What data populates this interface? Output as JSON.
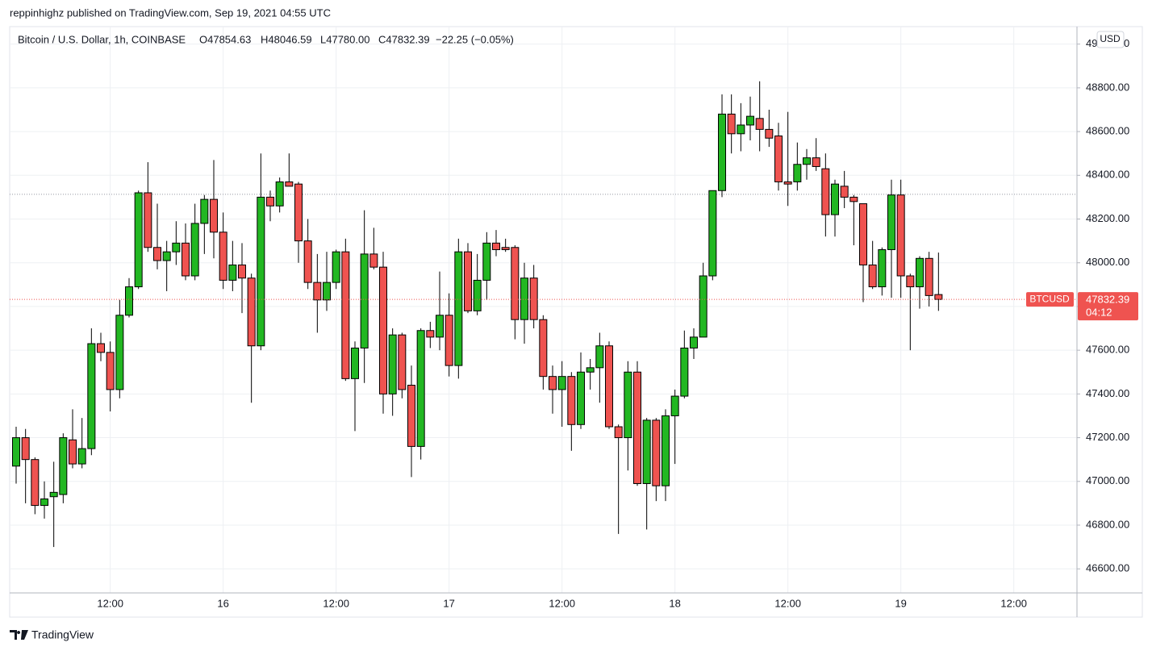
{
  "publisher_line": "reppinhighz published on TradingView.com, Sep 19, 2021 04:55 UTC",
  "logo": "TradingView",
  "chart_data": {
    "type": "candlestick",
    "header": {
      "symbol": "Bitcoin / U.S. Dollar, 1h, COINBASE",
      "open": "O47854.63",
      "high": "H48046.59",
      "low": "L47780.00",
      "close": "C47832.39",
      "change": "−22.25 (−0.05%)"
    },
    "currency": "USD",
    "last_price": {
      "symbol": "BTCUSD",
      "value": 47832.39,
      "countdown": "04:12",
      "color": "#ef5350"
    },
    "reference_level": 48313,
    "up_color": "#22b722",
    "down_color": "#ef5350",
    "categories": [
      null,
      null,
      null,
      null,
      null,
      null,
      null,
      null,
      null,
      null,
      "12:00",
      null,
      null,
      null,
      null,
      null,
      null,
      null,
      null,
      null,
      null,
      null,
      "16",
      null,
      null,
      null,
      null,
      null,
      null,
      null,
      null,
      null,
      null,
      null,
      "12:00",
      null,
      null,
      null,
      null,
      null,
      null,
      null,
      null,
      null,
      null,
      null,
      "17",
      null,
      null,
      null,
      null,
      null,
      null,
      null,
      null,
      null,
      null,
      null,
      "12:00",
      null,
      null,
      null,
      null,
      null,
      null,
      null,
      null,
      null,
      null,
      null,
      "18",
      null,
      null,
      null,
      null,
      null,
      null,
      null,
      null,
      null,
      null,
      null,
      "12:00",
      null,
      null,
      null,
      null,
      null,
      null,
      null,
      null,
      null,
      null,
      null,
      "19",
      null,
      null,
      null,
      null,
      null,
      null,
      null,
      null,
      null,
      null,
      null,
      "12:00"
    ],
    "open": [
      47070,
      47200,
      47100,
      46890,
      46930,
      46940,
      47190,
      47080,
      47150,
      47630,
      47590,
      47420,
      47760,
      47890,
      48320,
      48070,
      48010,
      48050,
      48090,
      47940,
      48180,
      48290,
      48140,
      47920,
      47990,
      47930,
      47620,
      48300,
      48260,
      48370,
      48360,
      48100,
      47910,
      47830,
      47910,
      48050,
      47470,
      47610,
      48040,
      47980,
      47400,
      47670,
      47440,
      47160,
      47690,
      47660,
      47760,
      47530,
      48050,
      47780,
      47920,
      48090,
      48070,
      48070,
      47740,
      47930,
      47740,
      47480,
      47420,
      47480,
      47260,
      47500,
      47520,
      47620,
      47250,
      47200,
      47500,
      46990,
      47280,
      46980,
      47300,
      47390,
      47610,
      47660,
      47940,
      48330,
      48680,
      48590,
      48630,
      48660,
      48610,
      48580,
      48370,
      48370,
      48450,
      48480,
      48430,
      48220,
      48350,
      48300,
      48270,
      47990,
      47890,
      48060,
      48310,
      47940,
      47890,
      48020,
      47854.63,
      null,
      null,
      null,
      null,
      null,
      null,
      null,
      null
    ],
    "high": [
      47250,
      47240,
      47110,
      47000,
      47090,
      47220,
      47330,
      47290,
      47700,
      47680,
      47640,
      47830,
      47930,
      48330,
      48460,
      48270,
      48100,
      48190,
      48180,
      48270,
      48310,
      48470,
      48230,
      48100,
      48090,
      47950,
      48500,
      48330,
      48390,
      48500,
      48370,
      48200,
      48040,
      48050,
      48060,
      48110,
      47640,
      48240,
      48160,
      48050,
      47700,
      47680,
      47530,
      47700,
      47730,
      47960,
      47860,
      48110,
      48090,
      48040,
      48140,
      48150,
      48110,
      48080,
      48000,
      47990,
      47760,
      47530,
      47550,
      47500,
      47590,
      47560,
      47680,
      47640,
      47260,
      47550,
      47550,
      47290,
      47290,
      47330,
      47420,
      47690,
      47700,
      48000,
      48330,
      48770,
      48770,
      48730,
      48760,
      48830,
      48700,
      48640,
      48690,
      48550,
      48520,
      48570,
      48500,
      48380,
      48420,
      48310,
      48270,
      48100,
      48070,
      48380,
      48380,
      47950,
      48030,
      48050,
      48046.59,
      null,
      null,
      null,
      null,
      null,
      null,
      null,
      null
    ],
    "low": [
      46990,
      46900,
      46850,
      46830,
      46700,
      46900,
      47060,
      47060,
      47120,
      47550,
      47320,
      47380,
      47750,
      47880,
      48050,
      47970,
      47870,
      47990,
      47920,
      47920,
      48040,
      48020,
      47880,
      47870,
      47770,
      47360,
      47600,
      48190,
      48230,
      48350,
      48000,
      47880,
      47680,
      47780,
      47880,
      47460,
      47230,
      47450,
      47970,
      47310,
      47300,
      47380,
      47020,
      47100,
      47610,
      47600,
      47480,
      47470,
      47770,
      47760,
      47830,
      48030,
      48050,
      47650,
      47630,
      47700,
      47420,
      47310,
      47250,
      47140,
      47240,
      47420,
      47360,
      47240,
      46760,
      47050,
      46980,
      46780,
      46910,
      46910,
      47080,
      47380,
      47560,
      47660,
      47920,
      48300,
      48500,
      48510,
      48560,
      48510,
      48530,
      48330,
      48260,
      48330,
      48380,
      48420,
      48120,
      48120,
      48250,
      48080,
      47820,
      47880,
      47850,
      47840,
      47840,
      47600,
      47790,
      47800,
      47780,
      null,
      null,
      null,
      null,
      null,
      null,
      null,
      null
    ],
    "close": [
      47200,
      47100,
      46890,
      46920,
      46950,
      47200,
      47080,
      47150,
      47630,
      47590,
      47420,
      47760,
      47890,
      48320,
      48070,
      48010,
      48050,
      48090,
      47940,
      48180,
      48290,
      48140,
      47920,
      47990,
      47930,
      47620,
      48300,
      48260,
      48370,
      48350,
      48100,
      47910,
      47830,
      47910,
      48050,
      47470,
      47610,
      48040,
      47980,
      47400,
      47670,
      47420,
      47160,
      47690,
      47660,
      47760,
      47530,
      48050,
      47780,
      47920,
      48090,
      48060,
      48060,
      47740,
      47930,
      47740,
      47480,
      47420,
      47480,
      47260,
      47500,
      47520,
      47620,
      47250,
      47200,
      47500,
      46990,
      47280,
      46980,
      47300,
      47390,
      47610,
      47660,
      47940,
      48330,
      48680,
      48590,
      48630,
      48670,
      48610,
      48570,
      48370,
      48360,
      48450,
      48480,
      48440,
      48220,
      48360,
      48300,
      48280,
      47990,
      47890,
      48060,
      48310,
      47940,
      47890,
      48020,
      47850,
      47832.39,
      null,
      null,
      null,
      null,
      null,
      null,
      null,
      null
    ],
    "ylim": [
      46490,
      49080
    ],
    "yticks": [
      {
        "value": 46600,
        "label": "46600.00"
      },
      {
        "value": 46800,
        "label": "46800.00"
      },
      {
        "value": 47000,
        "label": "47000.00"
      },
      {
        "value": 47200,
        "label": "47200.00"
      },
      {
        "value": 47400,
        "label": "47400.00"
      },
      {
        "value": 47600,
        "label": "47600.00"
      },
      {
        "value": 47800,
        "label": "47800.00"
      },
      {
        "value": 48000,
        "label": "48000.00"
      },
      {
        "value": 48200,
        "label": "48200.00"
      },
      {
        "value": 48400,
        "label": "48400.00"
      },
      {
        "value": 48600,
        "label": "48600.00"
      },
      {
        "value": 48800,
        "label": "48800.00"
      },
      {
        "value": 49000,
        "label": "49000.00"
      }
    ],
    "grid": true
  }
}
